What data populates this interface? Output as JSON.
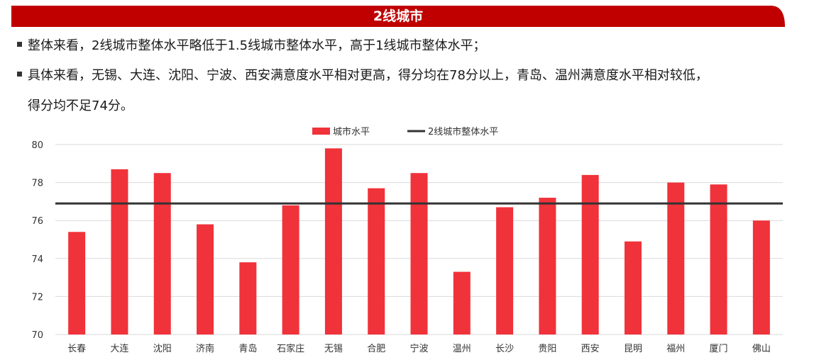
{
  "banner": {
    "title": "2线城市"
  },
  "bullets": [
    "整体来看，2线城市整体水平略低于1.5线城市整体水平，高于1线城市整体水平；",
    "具体来看，无锡、大连、沈阳、宁波、西安满意度水平相对更高，得分均在78分以上，青岛、温州满意度水平相对较低，",
    "得分均不足74分。"
  ],
  "colors": {
    "banner": "#c00000",
    "bar": "#f0323a",
    "line": "#333333",
    "grid": "#d9d9d9"
  },
  "chart_data": {
    "type": "bar",
    "categories": [
      "长春",
      "大连",
      "沈阳",
      "济南",
      "青岛",
      "石家庄",
      "无锡",
      "合肥",
      "宁波",
      "温州",
      "长沙",
      "贵阳",
      "西安",
      "昆明",
      "福州",
      "厦门",
      "佛山"
    ],
    "series": [
      {
        "name": "城市水平",
        "type": "bar",
        "values": [
          75.4,
          78.7,
          78.5,
          75.8,
          73.8,
          76.8,
          79.8,
          77.7,
          78.5,
          73.3,
          76.7,
          77.2,
          78.4,
          74.9,
          78.0,
          77.9,
          76.0
        ]
      },
      {
        "name": "2线城市整体水平",
        "type": "line",
        "value": 76.9
      }
    ],
    "ylim": [
      70,
      80
    ],
    "yticks": [
      70,
      72,
      74,
      76,
      78,
      80
    ],
    "legend": "top-center",
    "grid": true
  }
}
